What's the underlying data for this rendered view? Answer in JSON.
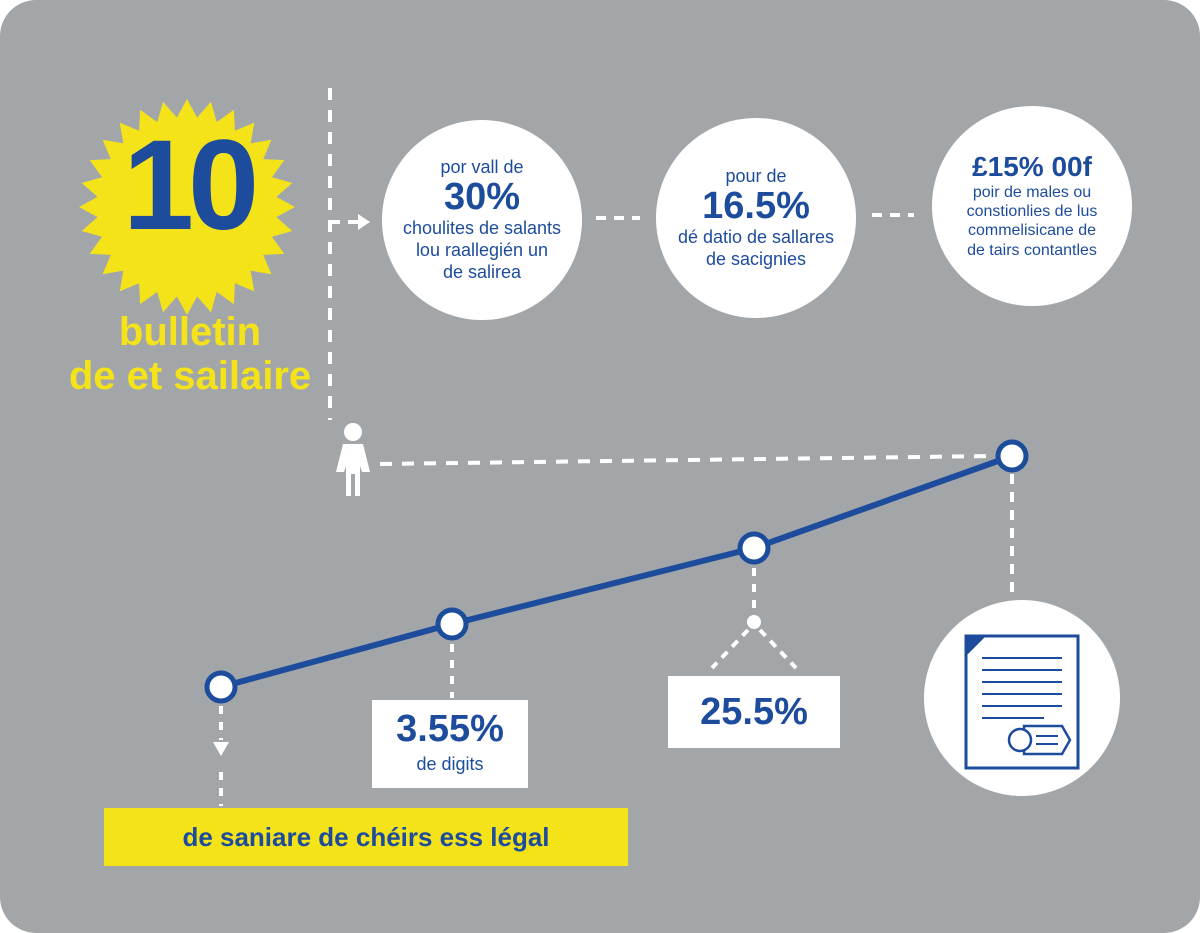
{
  "badge": {
    "number": "10"
  },
  "title": {
    "line1": "bulletin",
    "line2": "de et sailaire"
  },
  "stats": [
    {
      "lines": [
        "por vall de"
      ],
      "value": "30%",
      "after": [
        "choulites de salants",
        "lou raallegién un",
        "de salirea"
      ]
    },
    {
      "lines": [
        "pour de"
      ],
      "value": "16.5%",
      "after": [
        "dé datio de sallares",
        "de sacignies"
      ]
    },
    {
      "lines": [],
      "value": "£15% 00f",
      "after": [
        "poir de males ou",
        "constionlies de lus",
        "commelisicane de",
        "de tairs contantles"
      ]
    }
  ],
  "callouts": [
    {
      "value": "3.55%",
      "label": "de digits"
    },
    {
      "value": "25.5%"
    }
  ],
  "banner": "de saniare de chéirs ess légal",
  "line_points": [
    1,
    2,
    3,
    4
  ],
  "colors": {
    "background": "#a3a6a9",
    "accent_blue": "#1d4c9c",
    "accent_yellow": "#f5e31a",
    "white": "#ffffff"
  },
  "icons": [
    "starburst-badge",
    "person-icon",
    "document-icon",
    "arrow-icon"
  ]
}
